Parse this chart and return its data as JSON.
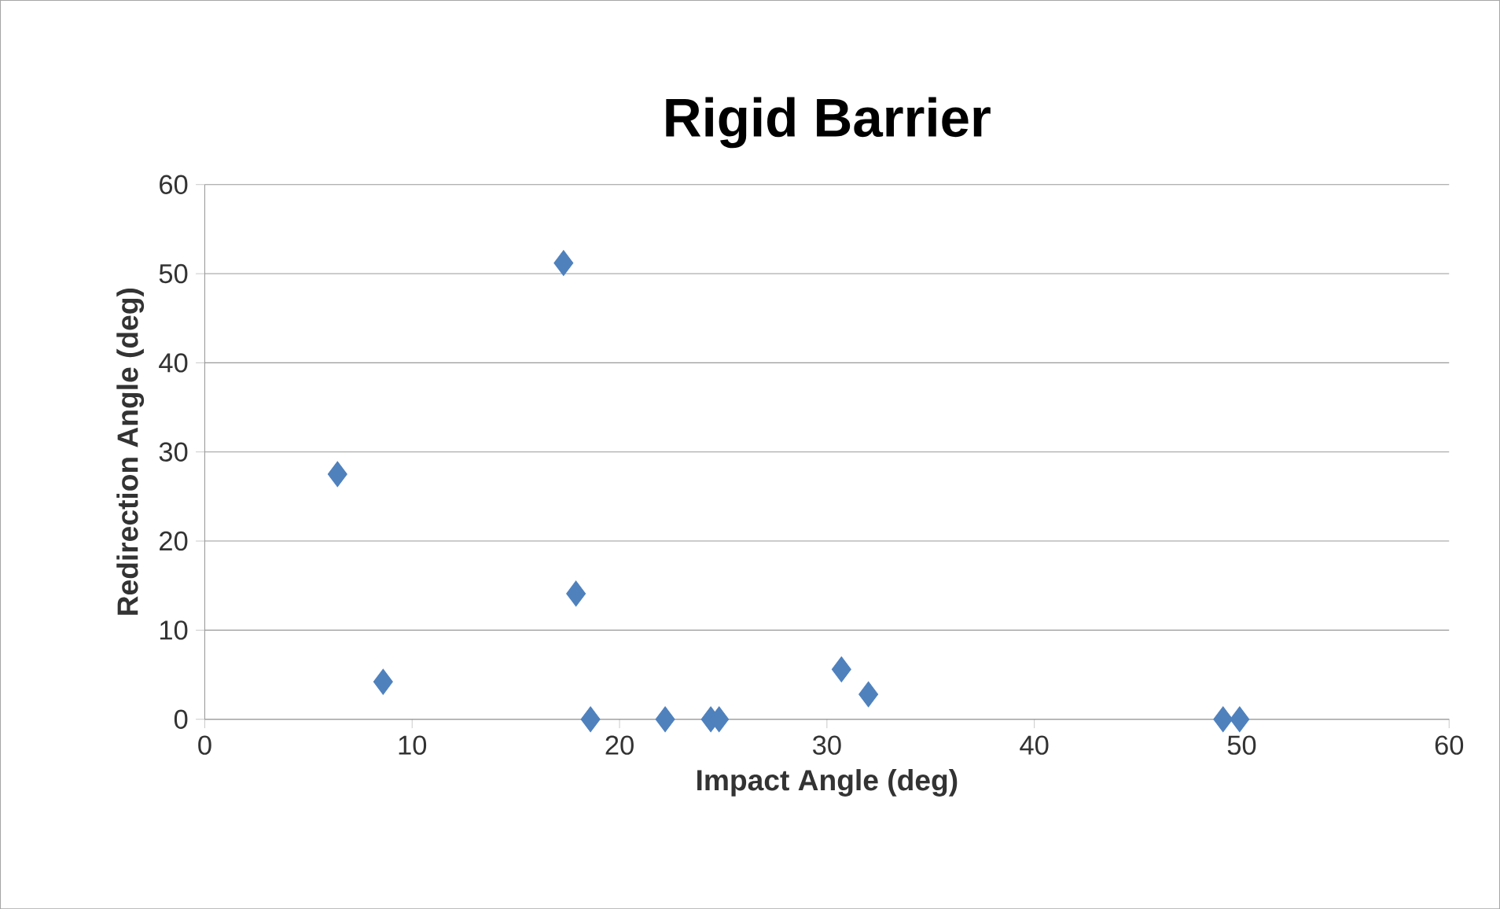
{
  "chart_data": {
    "type": "scatter",
    "title": "Rigid Barrier",
    "xlabel": "Impact Angle (deg)",
    "ylabel": "Redirection Angle (deg)",
    "x": [
      6.4,
      8.6,
      17.3,
      17.9,
      18.6,
      22.2,
      24.4,
      24.8,
      30.7,
      32.0,
      49.1,
      49.9
    ],
    "values": [
      27.5,
      4.2,
      51.2,
      14.1,
      0,
      0,
      0,
      0,
      5.6,
      2.8,
      0,
      0
    ],
    "color": "#4f81bd",
    "marker": "diamond",
    "grid": "y",
    "xlim": [
      0,
      60
    ],
    "xticks": [
      0,
      10,
      20,
      30,
      40,
      50,
      60
    ],
    "ylim": [
      0,
      60
    ],
    "yticks": [
      0,
      10,
      20,
      30,
      40,
      50,
      60
    ]
  }
}
